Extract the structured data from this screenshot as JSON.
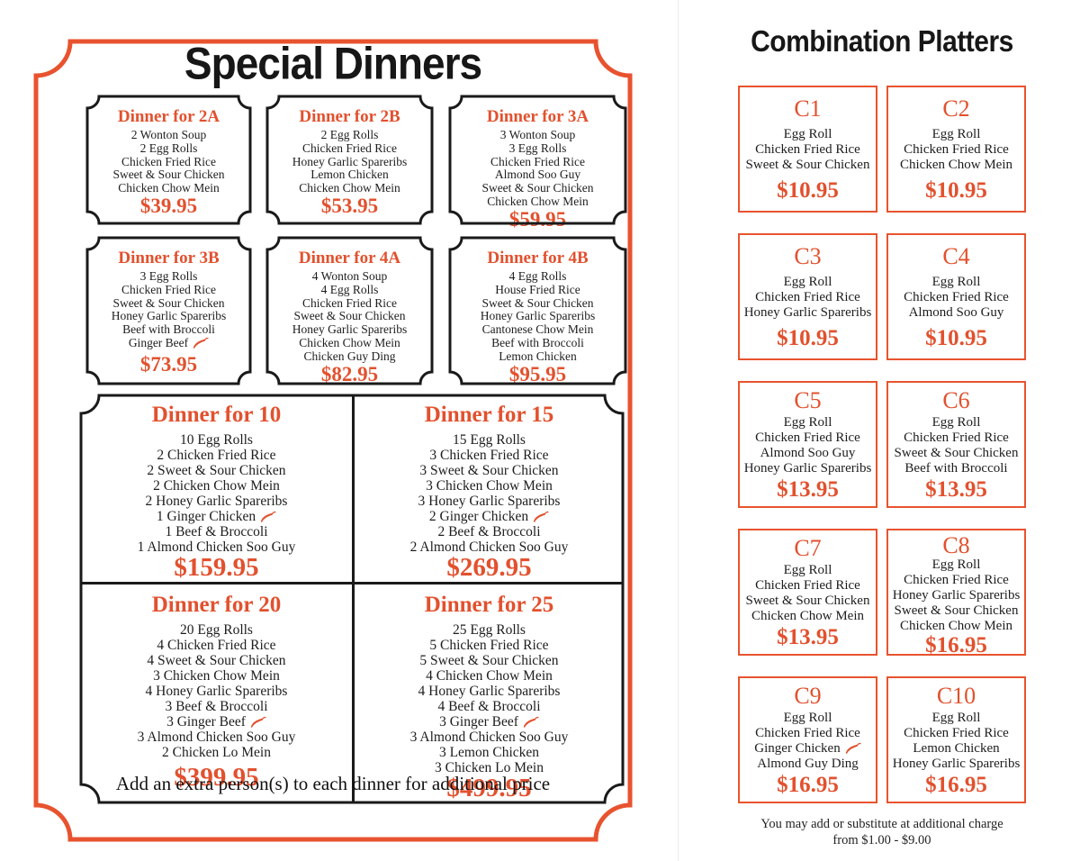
{
  "colors": {
    "accent": "#e2512e",
    "frame": "#e8532f",
    "ink": "#1d1d1d"
  },
  "left_page": {
    "title": "Special Dinners",
    "small_boxes": [
      {
        "name": "Dinner for 2A",
        "items": [
          "2 Wonton Soup",
          "2 Egg Rolls",
          "Chicken Fried Rice",
          "Sweet & Sour Chicken",
          "Chicken Chow Mein"
        ],
        "price": "$39.95"
      },
      {
        "name": "Dinner for 2B",
        "items": [
          "2 Egg Rolls",
          "Chicken Fried Rice",
          "Honey Garlic Spareribs",
          "Lemon Chicken",
          "Chicken Chow Mein"
        ],
        "price": "$53.95"
      },
      {
        "name": "Dinner for 3A",
        "items": [
          "3 Wonton Soup",
          "3 Egg Rolls",
          "Chicken Fried Rice",
          "Almond Soo Guy",
          "Sweet & Sour Chicken",
          "Chicken Chow Mein"
        ],
        "price": "$59.95"
      },
      {
        "name": "Dinner for 3B",
        "items": [
          "3 Egg Rolls",
          "Chicken Fried Rice",
          "Sweet & Sour Chicken",
          "Honey Garlic Spareribs",
          "Beef with Broccoli",
          {
            "text": "Ginger Beef",
            "spicy": true
          }
        ],
        "price": "$73.95"
      },
      {
        "name": "Dinner for 4A",
        "items": [
          "4 Wonton Soup",
          "4 Egg Rolls",
          "Chicken Fried Rice",
          "Sweet & Sour Chicken",
          "Honey Garlic Spareribs",
          "Chicken Chow Mein",
          "Chicken Guy Ding"
        ],
        "price": "$82.95"
      },
      {
        "name": "Dinner for 4B",
        "items": [
          "4 Egg Rolls",
          "House Fried Rice",
          "Sweet & Sour Chicken",
          "Honey Garlic Spareribs",
          "Cantonese Chow Mein",
          "Beef with Broccoli",
          "Lemon Chicken"
        ],
        "price": "$95.95"
      }
    ],
    "large_boxes": [
      {
        "name": "Dinner for 10",
        "items": [
          "10 Egg Rolls",
          "2 Chicken Fried Rice",
          "2 Sweet & Sour Chicken",
          "2 Chicken Chow Mein",
          "2 Honey Garlic Spareribs",
          {
            "text": "1 Ginger Chicken",
            "spicy": true
          },
          "1 Beef & Broccoli",
          "1 Almond Chicken Soo Guy"
        ],
        "price": "$159.95"
      },
      {
        "name": "Dinner for 15",
        "items": [
          "15 Egg Rolls",
          "3 Chicken Fried Rice",
          "3 Sweet & Sour Chicken",
          "3 Chicken Chow Mein",
          "3 Honey Garlic Spareribs",
          {
            "text": "2 Ginger Chicken",
            "spicy": true
          },
          "2 Beef & Broccoli",
          "2 Almond Chicken Soo Guy"
        ],
        "price": "$269.95"
      },
      {
        "name": "Dinner for 20",
        "items": [
          "20 Egg Rolls",
          "4 Chicken Fried Rice",
          "4 Sweet & Sour Chicken",
          "3 Chicken Chow Mein",
          "4 Honey Garlic Spareribs",
          "3 Beef & Broccoli",
          {
            "text": "3 Ginger Beef",
            "spicy": true
          },
          "3 Almond Chicken Soo Guy",
          "2 Chicken Lo Mein"
        ],
        "price": "$399.95"
      },
      {
        "name": "Dinner for 25",
        "items": [
          "25 Egg Rolls",
          "5 Chicken Fried Rice",
          "5 Sweet & Sour Chicken",
          "4 Chicken Chow Mein",
          "4 Honey Garlic Spareribs",
          "4 Beef & Broccoli",
          {
            "text": "3 Ginger Beef",
            "spicy": true
          },
          "3 Almond Chicken Soo Guy",
          "3 Lemon Chicken",
          "3 Chicken Lo Mein"
        ],
        "price": "$499.95"
      }
    ],
    "footnote": "Add an extra person(s) to each dinner for additional price"
  },
  "right_page": {
    "title": "Combination Platters",
    "combos": [
      {
        "name": "C1",
        "items": [
          "Egg Roll",
          "Chicken Fried Rice",
          "Sweet & Sour Chicken"
        ],
        "price": "$10.95"
      },
      {
        "name": "C2",
        "items": [
          "Egg Roll",
          "Chicken Fried Rice",
          "Chicken Chow Mein"
        ],
        "price": "$10.95"
      },
      {
        "name": "C3",
        "items": [
          "Egg Roll",
          "Chicken Fried Rice",
          "Honey Garlic Spareribs"
        ],
        "price": "$10.95"
      },
      {
        "name": "C4",
        "items": [
          "Egg Roll",
          "Chicken Fried Rice",
          "Almond Soo Guy"
        ],
        "price": "$10.95"
      },
      {
        "name": "C5",
        "items": [
          "Egg Roll",
          "Chicken Fried Rice",
          "Almond Soo Guy",
          "Honey Garlic Spareribs"
        ],
        "price": "$13.95"
      },
      {
        "name": "C6",
        "items": [
          "Egg Roll",
          "Chicken Fried Rice",
          "Sweet & Sour Chicken",
          "Beef with Broccoli"
        ],
        "price": "$13.95"
      },
      {
        "name": "C7",
        "items": [
          "Egg Roll",
          "Chicken Fried Rice",
          "Sweet & Sour Chicken",
          "Chicken Chow Mein"
        ],
        "price": "$13.95"
      },
      {
        "name": "C8",
        "items": [
          "Egg Roll",
          "Chicken Fried Rice",
          "Honey Garlic Spareribs",
          "Sweet & Sour Chicken",
          "Chicken Chow Mein"
        ],
        "price": "$16.95"
      },
      {
        "name": "C9",
        "items": [
          "Egg Roll",
          "Chicken Fried Rice",
          {
            "text": "Ginger Chicken",
            "spicy": true
          },
          "Almond Guy Ding"
        ],
        "price": "$16.95"
      },
      {
        "name": "C10",
        "items": [
          "Egg Roll",
          "Chicken Fried Rice",
          "Lemon Chicken",
          "Honey Garlic Spareribs"
        ],
        "price": "$16.95"
      }
    ],
    "footnote_line1": "You may add or substitute at additional charge",
    "footnote_line2": "from $1.00 - $9.00"
  }
}
